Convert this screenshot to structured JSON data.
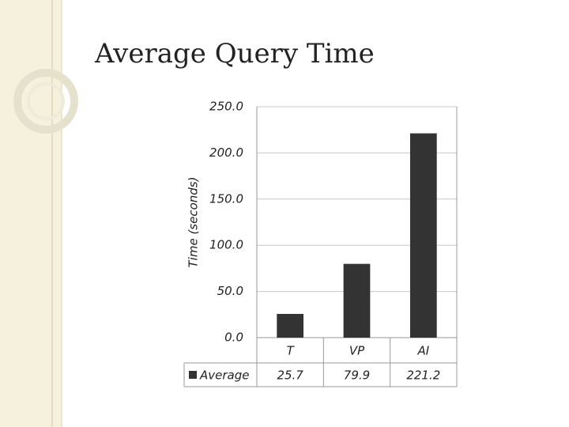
{
  "chart_data": {
    "type": "bar",
    "title": "Average Query Time",
    "y_label": "Time (seconds)",
    "categories": [
      "T",
      "VP",
      "AI"
    ],
    "series": [
      {
        "name": "Average",
        "color": "#333333",
        "values": [
          25.7,
          79.9,
          221.2
        ]
      }
    ],
    "ylim": [
      0,
      250
    ],
    "yticks": [
      {
        "value": 0,
        "label": "0.0"
      },
      {
        "value": 50,
        "label": "50.0"
      },
      {
        "value": 100,
        "label": "100.0"
      },
      {
        "value": 150,
        "label": "150.0"
      },
      {
        "value": 200,
        "label": "200.0"
      },
      {
        "value": 250,
        "label": "250.0"
      }
    ],
    "grid": true,
    "data_table": true
  }
}
